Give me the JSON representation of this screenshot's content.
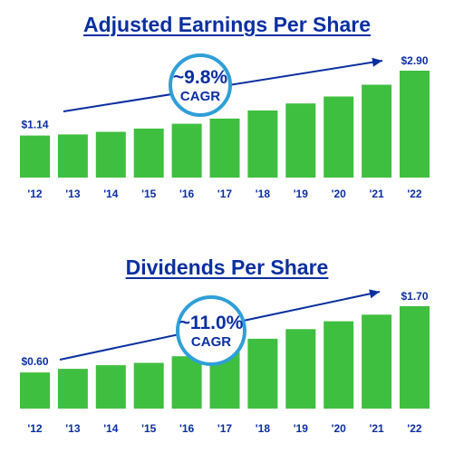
{
  "chart_data": [
    {
      "type": "bar",
      "title": "Adjusted Earnings Per Share",
      "categories": [
        "'12",
        "'13",
        "'14",
        "'15",
        "'16",
        "'17",
        "'18",
        "'19",
        "'20",
        "'21",
        "'22"
      ],
      "values": [
        1.14,
        1.17,
        1.24,
        1.33,
        1.46,
        1.6,
        1.82,
        2.01,
        2.2,
        2.52,
        2.9
      ],
      "first_label": "$1.14",
      "last_label": "$2.90",
      "cagr_value": "~9.8%",
      "cagr_text": "CAGR",
      "colors": {
        "bar": "#3fbf3f",
        "text": "#0a2fa0",
        "circle": "#2f9fd8"
      }
    },
    {
      "type": "bar",
      "title": "Dividends Per Share",
      "categories": [
        "'12",
        "'13",
        "'14",
        "'15",
        "'16",
        "'17",
        "'18",
        "'19",
        "'20",
        "'21",
        "'22"
      ],
      "values": [
        0.6,
        0.66,
        0.72,
        0.76,
        0.87,
        1.01,
        1.16,
        1.32,
        1.45,
        1.56,
        1.7
      ],
      "first_label": "$0.60",
      "last_label": "$1.70",
      "cagr_value": "~11.0%",
      "cagr_text": "CAGR",
      "colors": {
        "bar": "#3fbf3f",
        "text": "#0a2fa0",
        "circle": "#2f9fd8"
      }
    }
  ]
}
